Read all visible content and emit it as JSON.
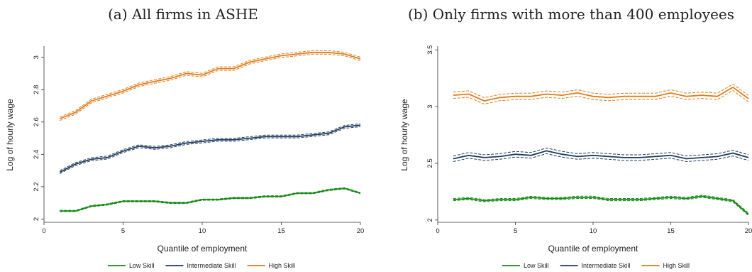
{
  "chart_data": [
    {
      "type": "line",
      "title": "(a) All firms in ASHE",
      "xlabel": "Quantile of employment",
      "ylabel": "Log of hourly wage",
      "xlim": [
        0,
        20
      ],
      "ylim": [
        1.98,
        3.06
      ],
      "xticks": [
        "0",
        "5",
        "10",
        "15",
        "20"
      ],
      "yticks": [
        "2",
        "2.2",
        "2.4",
        "2.6",
        "2.8",
        "3"
      ],
      "grid": false,
      "legend_position": "bottom",
      "x": [
        1,
        2,
        3,
        4,
        5,
        6,
        7,
        8,
        9,
        10,
        11,
        12,
        13,
        14,
        15,
        16,
        17,
        18,
        19,
        20
      ],
      "series": [
        {
          "name": "Low Skill",
          "color": "#1a8a1a",
          "values": [
            2.05,
            2.05,
            2.08,
            2.09,
            2.11,
            2.11,
            2.11,
            2.1,
            2.1,
            2.12,
            2.12,
            2.13,
            2.13,
            2.14,
            2.14,
            2.16,
            2.16,
            2.18,
            2.19,
            2.16
          ],
          "band": 0.004
        },
        {
          "name": "Intermediate Skill",
          "color": "#1f3d5c",
          "values": [
            2.29,
            2.34,
            2.37,
            2.38,
            2.42,
            2.45,
            2.44,
            2.45,
            2.47,
            2.48,
            2.49,
            2.49,
            2.5,
            2.51,
            2.51,
            2.51,
            2.52,
            2.53,
            2.57,
            2.58
          ],
          "band": 0.009
        },
        {
          "name": "High Skill",
          "color": "#e07b1a",
          "values": [
            2.62,
            2.66,
            2.73,
            2.76,
            2.79,
            2.83,
            2.85,
            2.87,
            2.9,
            2.89,
            2.93,
            2.93,
            2.97,
            2.99,
            3.01,
            3.02,
            3.03,
            3.03,
            3.02,
            2.99
          ],
          "band": 0.011
        }
      ]
    },
    {
      "type": "line",
      "title": "(b) Only firms with more than 400 employees",
      "xlabel": "Quantile of employment",
      "ylabel": "Log of hourly wage",
      "xlim": [
        0,
        20
      ],
      "ylim": [
        1.98,
        3.52
      ],
      "xticks": [
        "0",
        "5",
        "10",
        "15",
        "20"
      ],
      "yticks": [
        "2",
        "2.5",
        "3",
        "3.5"
      ],
      "grid": false,
      "legend_position": "bottom",
      "x": [
        1,
        2,
        3,
        4,
        5,
        6,
        7,
        8,
        9,
        10,
        11,
        12,
        13,
        14,
        15,
        16,
        17,
        18,
        19,
        20
      ],
      "series": [
        {
          "name": "Low Skill",
          "color": "#1a8a1a",
          "values": [
            2.18,
            2.19,
            2.17,
            2.18,
            2.18,
            2.2,
            2.19,
            2.19,
            2.2,
            2.2,
            2.18,
            2.18,
            2.18,
            2.19,
            2.2,
            2.19,
            2.21,
            2.19,
            2.17,
            2.05
          ],
          "band": 0.01
        },
        {
          "name": "Intermediate Skill",
          "color": "#1f3d5c",
          "values": [
            2.54,
            2.57,
            2.55,
            2.56,
            2.58,
            2.57,
            2.61,
            2.58,
            2.56,
            2.57,
            2.56,
            2.55,
            2.55,
            2.56,
            2.57,
            2.54,
            2.55,
            2.56,
            2.59,
            2.55
          ],
          "band": 0.025
        },
        {
          "name": "High Skill",
          "color": "#e07b1a",
          "values": [
            3.1,
            3.11,
            3.05,
            3.08,
            3.09,
            3.09,
            3.11,
            3.1,
            3.12,
            3.09,
            3.08,
            3.09,
            3.09,
            3.09,
            3.12,
            3.09,
            3.1,
            3.09,
            3.17,
            3.07
          ],
          "band": 0.028
        }
      ]
    }
  ]
}
